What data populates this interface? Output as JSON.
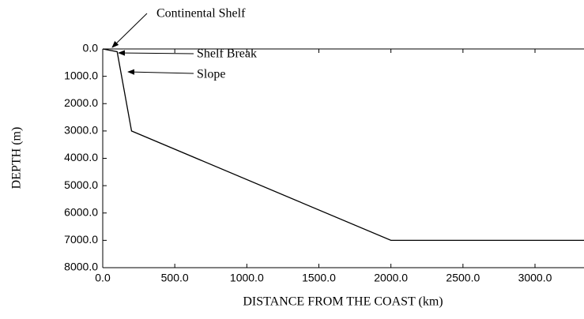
{
  "chart_data": {
    "type": "line",
    "x_label": "DISTANCE FROM THE COAST (km)",
    "y_label": "DEPTH (m)",
    "annotations": [
      "Continental Shelf",
      "Shelf Break",
      "Slope"
    ],
    "x": [
      0,
      100,
      200,
      2000,
      3340
    ],
    "series": [
      {
        "color": "#000000",
        "values": [
          0,
          100,
          3000,
          7000,
          7000
        ]
      }
    ],
    "xlim": [
      0,
      3340
    ],
    "ylim": [
      8000,
      0
    ],
    "y_inverted": true,
    "xticks": [
      {
        "value": 0,
        "label": "0.0"
      },
      {
        "value": 500,
        "label": "500.0"
      },
      {
        "value": 1000,
        "label": "1000.0"
      },
      {
        "value": 1500,
        "label": "1500.0"
      },
      {
        "value": 2000,
        "label": "2000.0"
      },
      {
        "value": 2500,
        "label": "2500.0"
      },
      {
        "value": 3000,
        "label": "3000.0"
      }
    ],
    "yticks": [
      {
        "value": 0,
        "label": "0.0"
      },
      {
        "value": 1000,
        "label": "1000.0"
      },
      {
        "value": 2000,
        "label": "2000.0"
      },
      {
        "value": 3000,
        "label": "3000.0"
      },
      {
        "value": 4000,
        "label": "4000.0"
      },
      {
        "value": 5000,
        "label": "5000.0"
      },
      {
        "value": 6000,
        "label": "6000.0"
      },
      {
        "value": 7000,
        "label": "7000.0"
      },
      {
        "value": 8000,
        "label": "8000.0"
      }
    ],
    "grid": false
  }
}
